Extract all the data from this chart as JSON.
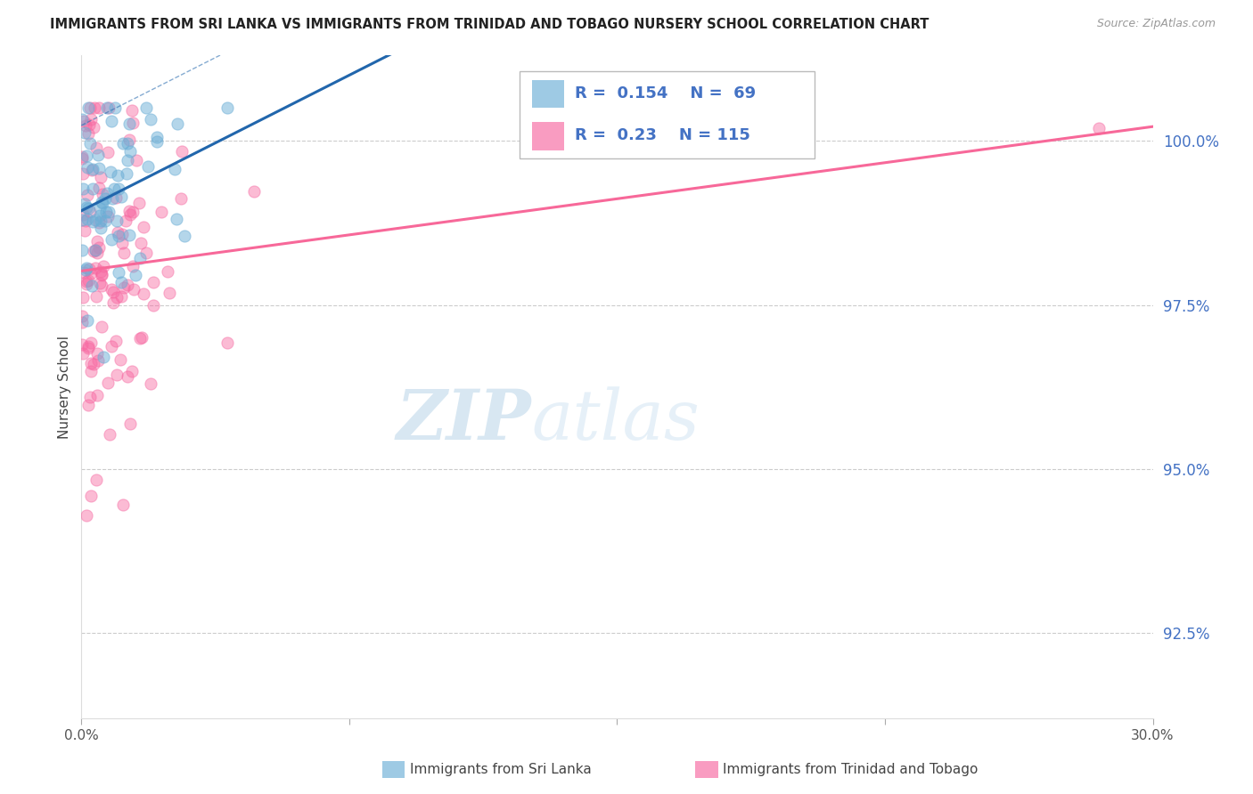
{
  "title": "IMMIGRANTS FROM SRI LANKA VS IMMIGRANTS FROM TRINIDAD AND TOBAGO NURSERY SCHOOL CORRELATION CHART",
  "source": "Source: ZipAtlas.com",
  "ylabel": "Nursery School",
  "ytick_values": [
    100.0,
    97.5,
    95.0,
    92.5
  ],
  "xlim": [
    0.0,
    30.0
  ],
  "ylim": [
    91.2,
    101.3
  ],
  "legend_sri_lanka": "Immigrants from Sri Lanka",
  "legend_trinidad": "Immigrants from Trinidad and Tobago",
  "R_sri_lanka": 0.154,
  "N_sri_lanka": 69,
  "R_trinidad": 0.23,
  "N_trinidad": 115,
  "color_sri_lanka": "#6baed6",
  "color_trinidad": "#f768a1",
  "color_trendline_sri_lanka": "#2166ac",
  "color_trendline_trinidad": "#f76899",
  "watermark_zip": "ZIP",
  "watermark_atlas": "atlas"
}
